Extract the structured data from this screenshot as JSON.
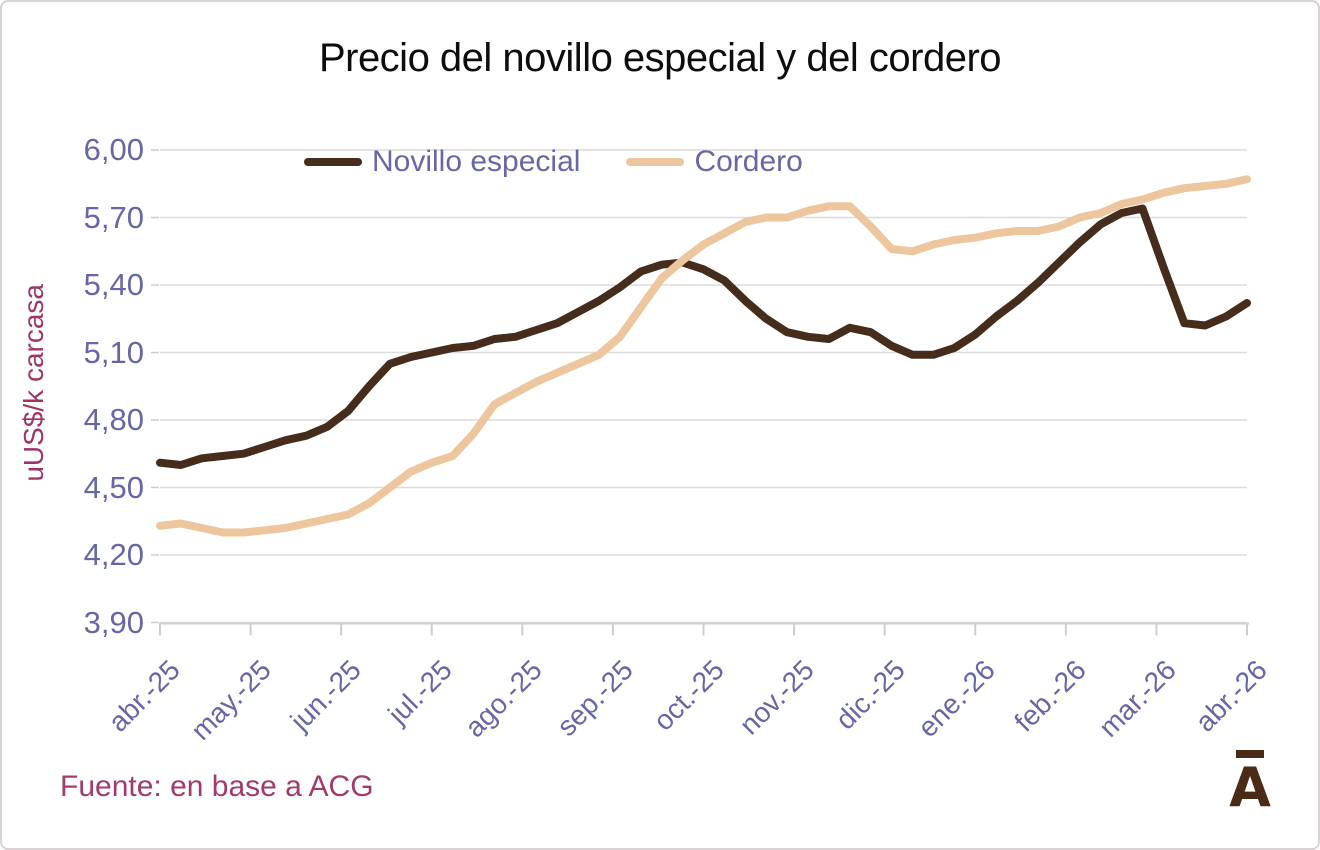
{
  "title": "Precio del novillo especial y del cordero",
  "y_axis_title": "uUS$/k carcasa",
  "source_note": "Fuente: en base a ACG",
  "logo": {
    "letter": "A"
  },
  "colors": {
    "title_text": "#0d0d0d",
    "axis_text": "#6766a6",
    "maroon_text": "#9e3566",
    "source_text": "#a23a6c",
    "gridline": "#dcdcdc",
    "axis_line": "#d2cbce",
    "logo_brown": "#4a2b15",
    "frame_border": "#d9d3d6"
  },
  "chart_data": {
    "type": "line",
    "title": "Precio del novillo especial y del cordero",
    "xlabel": "",
    "ylabel": "uUS$/k carcasa",
    "ylim": [
      3.9,
      6.0
    ],
    "grid": true,
    "legend_position": "top-inside",
    "x_unit": "weekly points from abr.-25 to abr.-26",
    "y_ticks": [
      {
        "label": "6,00",
        "value": 6.0
      },
      {
        "label": "5,70",
        "value": 5.7
      },
      {
        "label": "5,40",
        "value": 5.4
      },
      {
        "label": "5,10",
        "value": 5.1
      },
      {
        "label": "4,80",
        "value": 4.8
      },
      {
        "label": "4,50",
        "value": 4.5
      },
      {
        "label": "4,20",
        "value": 4.2
      },
      {
        "label": "3,90",
        "value": 3.9
      }
    ],
    "categories": [
      "abr.-25",
      "may.-25",
      "jun.-25",
      "jul.-25",
      "ago.-25",
      "sep.-25",
      "oct.-25",
      "nov.-25",
      "dic.-25",
      "ene.-26",
      "feb.-26",
      "mar.-26",
      "abr.-26"
    ],
    "series": [
      {
        "name": "Novillo especial",
        "color": "#462d1b",
        "values": [
          4.61,
          4.6,
          4.63,
          4.64,
          4.65,
          4.68,
          4.71,
          4.73,
          4.77,
          4.84,
          4.95,
          5.05,
          5.08,
          5.1,
          5.12,
          5.13,
          5.16,
          5.17,
          5.2,
          5.23,
          5.28,
          5.33,
          5.39,
          5.46,
          5.49,
          5.5,
          5.47,
          5.42,
          5.33,
          5.25,
          5.19,
          5.17,
          5.16,
          5.21,
          5.19,
          5.13,
          5.09,
          5.09,
          5.12,
          5.18,
          5.26,
          5.33,
          5.41,
          5.5,
          5.59,
          5.67,
          5.72,
          5.74,
          5.48,
          5.23,
          5.22,
          5.26,
          5.32
        ]
      },
      {
        "name": "Cordero",
        "color": "#edc69d",
        "values": [
          4.33,
          4.34,
          4.32,
          4.3,
          4.3,
          4.31,
          4.32,
          4.34,
          4.36,
          4.38,
          4.43,
          4.5,
          4.57,
          4.61,
          4.64,
          4.74,
          4.87,
          4.92,
          4.97,
          5.01,
          5.05,
          5.09,
          5.17,
          5.3,
          5.43,
          5.51,
          5.58,
          5.63,
          5.68,
          5.7,
          5.7,
          5.73,
          5.75,
          5.75,
          5.66,
          5.56,
          5.55,
          5.58,
          5.6,
          5.61,
          5.63,
          5.64,
          5.64,
          5.66,
          5.7,
          5.72,
          5.76,
          5.78,
          5.81,
          5.83,
          5.84,
          5.85,
          5.87
        ]
      }
    ]
  }
}
